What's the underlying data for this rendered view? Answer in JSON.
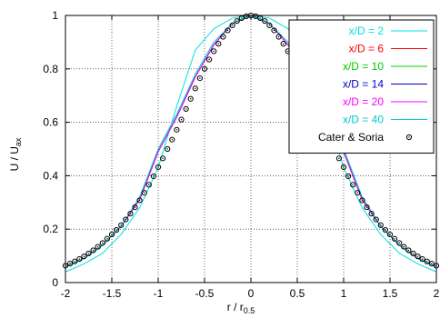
{
  "chart_data": {
    "type": "line",
    "title": "",
    "xlabel": "r / r",
    "xlabel_sub": "0.5",
    "ylabel": "U / U",
    "ylabel_sub": "ax",
    "xlim": [
      -2,
      2
    ],
    "ylim": [
      0,
      1
    ],
    "x_ticks": [
      -2,
      -1.5,
      -1,
      -0.5,
      0,
      0.5,
      1,
      1.5,
      2
    ],
    "x_tick_labels": [
      "-2",
      "-1.5",
      "-1",
      "-0.5",
      "0",
      "0.5",
      "1",
      "1.5",
      "2"
    ],
    "y_ticks": [
      0,
      0.2,
      0.4,
      0.6,
      0.8,
      1
    ],
    "y_tick_labels": [
      "0",
      "0.2",
      "0.4",
      "0.6",
      "0.8",
      "1"
    ],
    "grid": true,
    "legend_position": "top-right",
    "series": [
      {
        "name": "x/D = 2",
        "color": "#00e0e0",
        "style": "line",
        "x": [
          -2.0,
          -1.8,
          -1.6,
          -1.4,
          -1.2,
          -1.0,
          -0.8,
          -0.6,
          -0.4,
          -0.2,
          0.0,
          0.2,
          0.4,
          0.6,
          0.8,
          1.0,
          1.2,
          1.4,
          1.6,
          1.8,
          2.0
        ],
        "y": [
          0.04,
          0.07,
          0.11,
          0.18,
          0.28,
          0.43,
          0.66,
          0.87,
          0.95,
          0.99,
          1.0,
          0.99,
          0.95,
          0.87,
          0.66,
          0.43,
          0.28,
          0.18,
          0.11,
          0.07,
          0.04
        ]
      },
      {
        "name": "x/D = 6",
        "color": "#ff0000",
        "style": "line",
        "x": [
          -2.0,
          -1.8,
          -1.6,
          -1.4,
          -1.2,
          -1.0,
          -0.8,
          -0.6,
          -0.4,
          -0.2,
          0.0,
          0.2,
          0.4,
          0.6,
          0.8,
          1.0,
          1.2,
          1.4,
          1.6,
          1.8,
          2.0
        ],
        "y": [
          0.06,
          0.09,
          0.14,
          0.21,
          0.31,
          0.49,
          0.62,
          0.77,
          0.89,
          0.97,
          1.0,
          0.97,
          0.89,
          0.77,
          0.62,
          0.49,
          0.31,
          0.21,
          0.14,
          0.09,
          0.06
        ]
      },
      {
        "name": "x/D = 10",
        "color": "#00cc00",
        "style": "line",
        "x": [
          -2.0,
          -1.8,
          -1.6,
          -1.4,
          -1.2,
          -1.0,
          -0.8,
          -0.6,
          -0.4,
          -0.2,
          0.0,
          0.2,
          0.4,
          0.6,
          0.8,
          1.0,
          1.2,
          1.4,
          1.6,
          1.8,
          2.0
        ],
        "y": [
          0.06,
          0.09,
          0.14,
          0.21,
          0.32,
          0.49,
          0.62,
          0.77,
          0.89,
          0.97,
          1.0,
          0.97,
          0.89,
          0.77,
          0.62,
          0.49,
          0.32,
          0.21,
          0.14,
          0.09,
          0.06
        ]
      },
      {
        "name": "x/D = 14",
        "color": "#0000cc",
        "style": "line",
        "x": [
          -2.0,
          -1.8,
          -1.6,
          -1.4,
          -1.2,
          -1.0,
          -0.8,
          -0.6,
          -0.4,
          -0.2,
          0.0,
          0.2,
          0.4,
          0.6,
          0.8,
          1.0,
          1.2,
          1.4,
          1.6,
          1.8,
          2.0
        ],
        "y": [
          0.06,
          0.09,
          0.14,
          0.21,
          0.31,
          0.49,
          0.62,
          0.77,
          0.89,
          0.97,
          1.0,
          0.97,
          0.89,
          0.77,
          0.62,
          0.49,
          0.31,
          0.21,
          0.14,
          0.09,
          0.06
        ]
      },
      {
        "name": "x/D = 20",
        "color": "#ff00ff",
        "style": "line",
        "x": [
          -2.0,
          -1.8,
          -1.6,
          -1.4,
          -1.2,
          -1.0,
          -0.8,
          -0.6,
          -0.4,
          -0.2,
          0.0,
          0.2,
          0.4,
          0.6,
          0.8,
          1.0,
          1.2,
          1.4,
          1.6,
          1.8,
          2.0
        ],
        "y": [
          0.06,
          0.09,
          0.14,
          0.21,
          0.31,
          0.49,
          0.62,
          0.77,
          0.89,
          0.97,
          1.0,
          0.97,
          0.89,
          0.77,
          0.62,
          0.49,
          0.31,
          0.21,
          0.14,
          0.09,
          0.06
        ]
      },
      {
        "name": "x/D = 40",
        "color": "#00cccc",
        "style": "line",
        "x": [
          -2.0,
          -1.8,
          -1.6,
          -1.4,
          -1.2,
          -1.0,
          -0.8,
          -0.6,
          -0.4,
          -0.2,
          0.0,
          0.2,
          0.4,
          0.6,
          0.8,
          1.0,
          1.2,
          1.4,
          1.6,
          1.8,
          2.0
        ],
        "y": [
          0.06,
          0.09,
          0.14,
          0.21,
          0.32,
          0.5,
          0.63,
          0.78,
          0.9,
          0.97,
          1.0,
          0.97,
          0.9,
          0.78,
          0.63,
          0.5,
          0.32,
          0.21,
          0.14,
          0.09,
          0.06
        ]
      },
      {
        "name": "Cater & Soria",
        "color": "#000000",
        "style": "markers",
        "x": [
          -2.0,
          -1.95,
          -1.9,
          -1.85,
          -1.8,
          -1.75,
          -1.7,
          -1.65,
          -1.6,
          -1.55,
          -1.5,
          -1.45,
          -1.4,
          -1.35,
          -1.3,
          -1.25,
          -1.2,
          -1.15,
          -1.1,
          -1.05,
          -1.0,
          -0.95,
          -0.9,
          -0.85,
          -0.8,
          -0.75,
          -0.7,
          -0.65,
          -0.6,
          -0.55,
          -0.5,
          -0.45,
          -0.4,
          -0.35,
          -0.3,
          -0.25,
          -0.2,
          -0.15,
          -0.1,
          -0.05,
          0.0,
          0.05,
          0.1,
          0.15,
          0.2,
          0.25,
          0.3,
          0.35,
          0.4,
          0.45,
          0.5,
          0.55,
          0.6,
          0.65,
          0.7,
          0.75,
          0.8,
          0.85,
          0.9,
          0.95,
          1.0,
          1.05,
          1.1,
          1.15,
          1.2,
          1.25,
          1.3,
          1.35,
          1.4,
          1.45,
          1.5,
          1.55,
          1.6,
          1.65,
          1.7,
          1.75,
          1.8,
          1.85,
          1.9,
          1.95,
          2.0
        ],
        "y": [
          0.063,
          0.071,
          0.079,
          0.088,
          0.098,
          0.109,
          0.121,
          0.134,
          0.148,
          0.164,
          0.18,
          0.197,
          0.215,
          0.236,
          0.258,
          0.282,
          0.308,
          0.336,
          0.366,
          0.398,
          0.432,
          0.465,
          0.5,
          0.535,
          0.572,
          0.61,
          0.65,
          0.688,
          0.727,
          0.765,
          0.8,
          0.835,
          0.866,
          0.894,
          0.92,
          0.944,
          0.963,
          0.979,
          0.99,
          0.997,
          1.0,
          0.997,
          0.99,
          0.979,
          0.963,
          0.944,
          0.92,
          0.894,
          0.866,
          0.835,
          0.8,
          0.765,
          0.727,
          0.688,
          0.65,
          0.61,
          0.572,
          0.535,
          0.5,
          0.465,
          0.432,
          0.398,
          0.366,
          0.336,
          0.308,
          0.282,
          0.258,
          0.236,
          0.215,
          0.197,
          0.18,
          0.164,
          0.148,
          0.134,
          0.121,
          0.109,
          0.098,
          0.088,
          0.079,
          0.071,
          0.063
        ]
      }
    ]
  }
}
